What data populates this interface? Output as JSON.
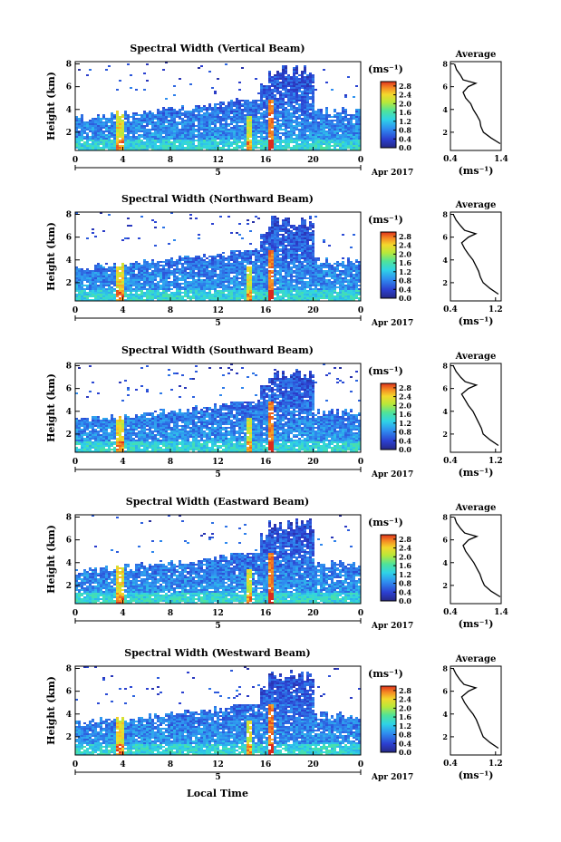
{
  "figure": {
    "xlabel": "Local Time",
    "date_label": "Apr 2017",
    "unit_label": "(ms⁻¹)",
    "ylabel": "Height (km)",
    "avg_title": "Average",
    "avg_xlabel": "(ms⁻¹)"
  },
  "chart_data": [
    {
      "type": "heatmap",
      "title": "Spectral Width (Vertical Beam)",
      "x_ticks": [
        "0",
        "4",
        "8",
        "12",
        "16",
        "20",
        "0"
      ],
      "x_range": [
        0,
        24
      ],
      "day_tick": "5",
      "y_ticks": [
        "2",
        "4",
        "6",
        "8"
      ],
      "y_range": [
        0.4,
        8.2
      ],
      "colorbar_ticks": [
        "0.0",
        "0.4",
        "0.8",
        "1.2",
        "1.6",
        "2.0",
        "2.4",
        "2.8"
      ],
      "colorbar_range": [
        0,
        3.0
      ],
      "avg_title": "Average",
      "avg_x_ticks": [
        "0.4",
        "1.4"
      ],
      "avg_x_range": [
        0.4,
        1.4
      ],
      "avg_y_ticks": [
        "2",
        "4",
        "6",
        "8"
      ],
      "average_profile": [
        {
          "h": 1.0,
          "w": 1.38
        },
        {
          "h": 1.5,
          "w": 1.2
        },
        {
          "h": 2.0,
          "w": 1.05
        },
        {
          "h": 2.5,
          "w": 1.0
        },
        {
          "h": 3.0,
          "w": 0.98
        },
        {
          "h": 3.5,
          "w": 0.92
        },
        {
          "h": 4.0,
          "w": 0.85
        },
        {
          "h": 4.5,
          "w": 0.8
        },
        {
          "h": 5.0,
          "w": 0.7
        },
        {
          "h": 5.5,
          "w": 0.65
        },
        {
          "h": 6.0,
          "w": 0.75
        },
        {
          "h": 6.3,
          "w": 0.9
        },
        {
          "h": 6.6,
          "w": 0.65
        },
        {
          "h": 7.0,
          "w": 0.6
        },
        {
          "h": 7.5,
          "w": 0.52
        },
        {
          "h": 8.0,
          "w": 0.48
        }
      ]
    },
    {
      "type": "heatmap",
      "title": "Spectral Width (Northward Beam)",
      "x_ticks": [
        "0",
        "4",
        "8",
        "12",
        "16",
        "20",
        "0"
      ],
      "x_range": [
        0,
        24
      ],
      "day_tick": "5",
      "y_ticks": [
        "2",
        "4",
        "6",
        "8"
      ],
      "y_range": [
        0.4,
        8.2
      ],
      "colorbar_ticks": [
        "0.0",
        "0.4",
        "0.8",
        "1.2",
        "1.6",
        "2.0",
        "2.4",
        "2.8"
      ],
      "colorbar_range": [
        0,
        3.0
      ],
      "avg_title": "Average",
      "avg_x_ticks": [
        "0.4",
        "1.2"
      ],
      "avg_x_range": [
        0.4,
        1.3
      ],
      "avg_y_ticks": [
        "2",
        "4",
        "6",
        "8"
      ],
      "average_profile": [
        {
          "h": 1.0,
          "w": 1.25
        },
        {
          "h": 1.5,
          "w": 1.1
        },
        {
          "h": 2.0,
          "w": 0.98
        },
        {
          "h": 2.5,
          "w": 0.93
        },
        {
          "h": 3.0,
          "w": 0.9
        },
        {
          "h": 3.5,
          "w": 0.85
        },
        {
          "h": 4.0,
          "w": 0.8
        },
        {
          "h": 4.5,
          "w": 0.72
        },
        {
          "h": 5.0,
          "w": 0.65
        },
        {
          "h": 5.5,
          "w": 0.6
        },
        {
          "h": 6.0,
          "w": 0.72
        },
        {
          "h": 6.3,
          "w": 0.85
        },
        {
          "h": 6.6,
          "w": 0.65
        },
        {
          "h": 7.0,
          "w": 0.58
        },
        {
          "h": 7.5,
          "w": 0.5
        },
        {
          "h": 8.0,
          "w": 0.45
        }
      ]
    },
    {
      "type": "heatmap",
      "title": "Spectral Width (Southward Beam)",
      "x_ticks": [
        "0",
        "4",
        "8",
        "12",
        "16",
        "20",
        "0"
      ],
      "x_range": [
        0,
        24
      ],
      "day_tick": "5",
      "y_ticks": [
        "2",
        "4",
        "6",
        "8"
      ],
      "y_range": [
        0.4,
        8.2
      ],
      "colorbar_ticks": [
        "0.0",
        "0.4",
        "0.8",
        "1.2",
        "1.6",
        "2.0",
        "2.4",
        "2.8"
      ],
      "colorbar_range": [
        0,
        3.0
      ],
      "avg_title": "Average",
      "avg_x_ticks": [
        "0.4",
        "1.2"
      ],
      "avg_x_range": [
        0.4,
        1.3
      ],
      "avg_y_ticks": [
        "2",
        "4",
        "6",
        "8"
      ],
      "average_profile": [
        {
          "h": 1.0,
          "w": 1.25
        },
        {
          "h": 1.5,
          "w": 1.1
        },
        {
          "h": 2.0,
          "w": 0.98
        },
        {
          "h": 2.5,
          "w": 0.95
        },
        {
          "h": 3.0,
          "w": 0.9
        },
        {
          "h": 3.5,
          "w": 0.85
        },
        {
          "h": 4.0,
          "w": 0.8
        },
        {
          "h": 4.5,
          "w": 0.72
        },
        {
          "h": 5.0,
          "w": 0.66
        },
        {
          "h": 5.5,
          "w": 0.6
        },
        {
          "h": 6.0,
          "w": 0.72
        },
        {
          "h": 6.3,
          "w": 0.86
        },
        {
          "h": 6.6,
          "w": 0.66
        },
        {
          "h": 7.0,
          "w": 0.58
        },
        {
          "h": 7.5,
          "w": 0.5
        },
        {
          "h": 8.0,
          "w": 0.45
        }
      ]
    },
    {
      "type": "heatmap",
      "title": "Spectral Width (Eastward Beam)",
      "x_ticks": [
        "0",
        "4",
        "8",
        "12",
        "16",
        "20",
        "0"
      ],
      "x_range": [
        0,
        24
      ],
      "day_tick": "5",
      "y_ticks": [
        "2",
        "4",
        "6",
        "8"
      ],
      "y_range": [
        0.4,
        8.2
      ],
      "colorbar_ticks": [
        "0.0",
        "0.4",
        "0.8",
        "1.2",
        "1.6",
        "2.0",
        "2.4",
        "2.8"
      ],
      "colorbar_range": [
        0,
        3.0
      ],
      "avg_title": "Average",
      "avg_x_ticks": [
        "0.4",
        "1.4"
      ],
      "avg_x_range": [
        0.4,
        1.4
      ],
      "avg_y_ticks": [
        "2",
        "4",
        "6",
        "8"
      ],
      "average_profile": [
        {
          "h": 1.0,
          "w": 1.38
        },
        {
          "h": 1.5,
          "w": 1.2
        },
        {
          "h": 2.0,
          "w": 1.07
        },
        {
          "h": 2.5,
          "w": 1.02
        },
        {
          "h": 3.0,
          "w": 0.98
        },
        {
          "h": 3.5,
          "w": 0.92
        },
        {
          "h": 4.0,
          "w": 0.86
        },
        {
          "h": 4.5,
          "w": 0.78
        },
        {
          "h": 5.0,
          "w": 0.7
        },
        {
          "h": 5.5,
          "w": 0.65
        },
        {
          "h": 6.0,
          "w": 0.76
        },
        {
          "h": 6.3,
          "w": 0.92
        },
        {
          "h": 6.6,
          "w": 0.68
        },
        {
          "h": 7.0,
          "w": 0.6
        },
        {
          "h": 7.5,
          "w": 0.52
        },
        {
          "h": 8.0,
          "w": 0.48
        }
      ]
    },
    {
      "type": "heatmap",
      "title": "Spectral Width (Westward Beam)",
      "x_ticks": [
        "0",
        "4",
        "8",
        "12",
        "16",
        "20",
        "0"
      ],
      "x_range": [
        0,
        24
      ],
      "day_tick": "5",
      "y_ticks": [
        "2",
        "4",
        "6",
        "8"
      ],
      "y_range": [
        0.4,
        8.2
      ],
      "colorbar_ticks": [
        "0.0",
        "0.4",
        "0.8",
        "1.2",
        "1.6",
        "2.0",
        "2.4",
        "2.8"
      ],
      "colorbar_range": [
        0,
        3.0
      ],
      "avg_title": "Average",
      "avg_x_ticks": [
        "0.4",
        "1.2"
      ],
      "avg_x_range": [
        0.4,
        1.3
      ],
      "avg_y_ticks": [
        "2",
        "4",
        "6",
        "8"
      ],
      "average_profile": [
        {
          "h": 1.0,
          "w": 1.25
        },
        {
          "h": 1.5,
          "w": 1.1
        },
        {
          "h": 2.0,
          "w": 0.98
        },
        {
          "h": 2.5,
          "w": 0.94
        },
        {
          "h": 3.0,
          "w": 0.9
        },
        {
          "h": 3.5,
          "w": 0.86
        },
        {
          "h": 4.0,
          "w": 0.8
        },
        {
          "h": 4.5,
          "w": 0.72
        },
        {
          "h": 5.0,
          "w": 0.65
        },
        {
          "h": 5.5,
          "w": 0.6
        },
        {
          "h": 6.0,
          "w": 0.72
        },
        {
          "h": 6.3,
          "w": 0.85
        },
        {
          "h": 6.6,
          "w": 0.64
        },
        {
          "h": 7.0,
          "w": 0.57
        },
        {
          "h": 7.5,
          "w": 0.5
        },
        {
          "h": 8.0,
          "w": 0.45
        }
      ]
    }
  ]
}
